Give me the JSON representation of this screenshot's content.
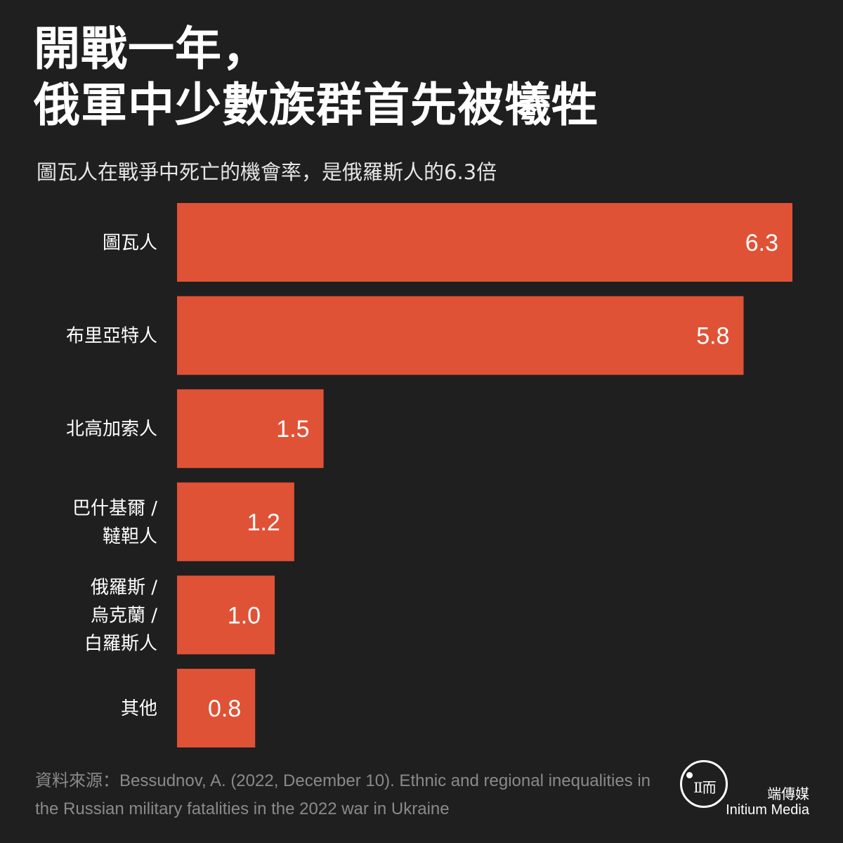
{
  "title_lines": [
    "開戰一年，",
    "俄軍中少數族群首先被犧牲"
  ],
  "subtitle": "圖瓦人在戰爭中死亡的機會率，是俄羅斯人的6.3倍",
  "source": "資料來源：Bessudnov, A. (2022, December 10). Ethnic and regional inequalities in the Russian military fatalities in the 2022 war in Ukraine",
  "logo": {
    "chinese": "端傳媒",
    "english": "Initium Media"
  },
  "colors": {
    "background": "#1f1f1f",
    "bar": "#e05236",
    "text": "#ffffff",
    "muted": "#8a8a8a"
  },
  "chart_data": {
    "type": "bar",
    "orientation": "horizontal",
    "categories": [
      [
        "圖瓦人"
      ],
      [
        "布里亞特人"
      ],
      [
        "北高加索人"
      ],
      [
        "巴什基爾 /",
        "韃靼人"
      ],
      [
        "俄羅斯 /",
        "烏克蘭 /",
        "白羅斯人"
      ],
      [
        "其他"
      ]
    ],
    "values": [
      6.3,
      5.8,
      1.5,
      1.2,
      1.0,
      0.8
    ],
    "value_labels": [
      "6.3",
      "5.8",
      "1.5",
      "1.2",
      "1.0",
      "0.8"
    ],
    "xlim": [
      0,
      6.3
    ],
    "grid": false
  }
}
